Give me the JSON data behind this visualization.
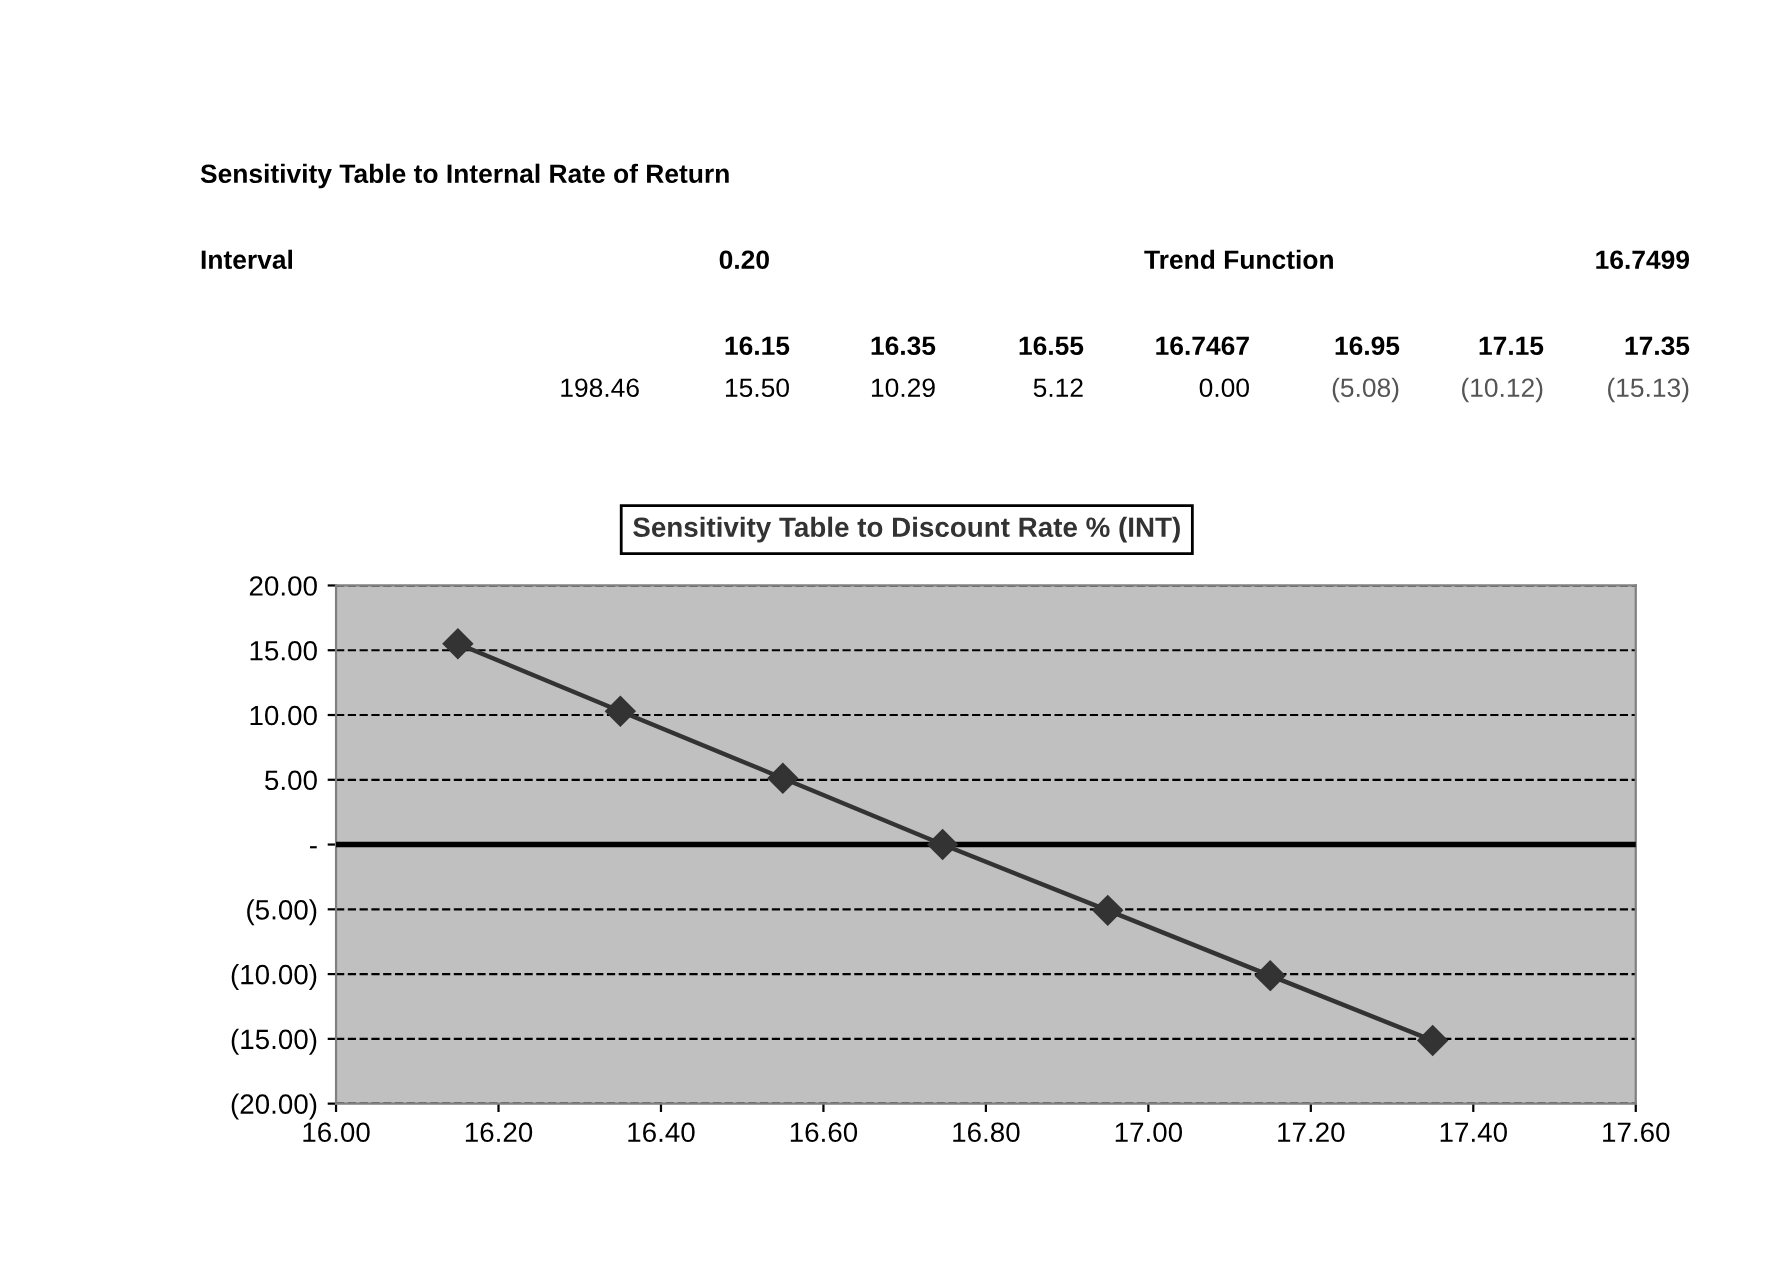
{
  "chart_data": {
    "type": "line",
    "title": "Sensitivity Table to Discount Rate % (INT)",
    "x": [
      16.15,
      16.35,
      16.55,
      16.7467,
      16.95,
      17.15,
      17.35
    ],
    "series": [
      {
        "color": "#333333",
        "values": [
          15.5,
          10.29,
          5.12,
          0.0,
          -5.08,
          -10.12,
          -15.13
        ]
      }
    ],
    "xlim": [
      16.0,
      17.6
    ],
    "xticks": [
      {
        "value": 16.0,
        "label": "16.00"
      },
      {
        "value": 16.2,
        "label": "16.20"
      },
      {
        "value": 16.4,
        "label": "16.40"
      },
      {
        "value": 16.6,
        "label": "16.60"
      },
      {
        "value": 16.8,
        "label": "16.80"
      },
      {
        "value": 17.0,
        "label": "17.00"
      },
      {
        "value": 17.2,
        "label": "17.20"
      },
      {
        "value": 17.4,
        "label": "17.40"
      },
      {
        "value": 17.6,
        "label": "17.60"
      }
    ],
    "ylim": [
      -20,
      20
    ],
    "yticks": [
      {
        "value": -20,
        "label": "(20.00)"
      },
      {
        "value": -15,
        "label": "(15.00)"
      },
      {
        "value": -10,
        "label": "(10.00)"
      },
      {
        "value": -5,
        "label": "(5.00)"
      },
      {
        "value": 0,
        "label": "-"
      },
      {
        "value": 5,
        "label": "5.00"
      },
      {
        "value": 10,
        "label": "10.00"
      },
      {
        "value": 15,
        "label": "15.00"
      },
      {
        "value": 20,
        "label": "20.00"
      }
    ],
    "ref_lines": [
      {
        "axis": "y",
        "value": 0,
        "color": "#000000",
        "line_style": "solid"
      }
    ],
    "grid": "y",
    "marker": "diamond",
    "line_style": "solid",
    "legend": false,
    "annotations": [
      "Sensitivity Table to Internal Rate of Return",
      "Interval",
      "0.20",
      "Trend Function",
      "16.7499",
      "16.15",
      "16.35",
      "16.55",
      "16.7467",
      "16.95",
      "17.15",
      "17.35",
      "198.46",
      "15.50",
      "10.29",
      "5.12",
      "0.00",
      "(5.08)",
      "(10.12)",
      "(15.13)"
    ]
  }
}
